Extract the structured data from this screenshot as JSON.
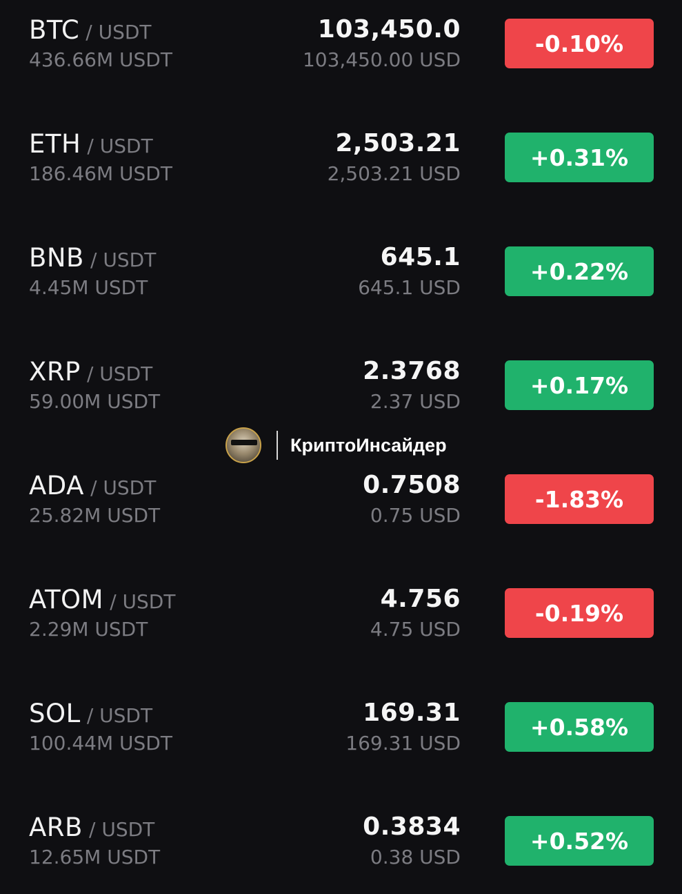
{
  "colors": {
    "background": "#0f0f12",
    "positive": "#20b26c",
    "negative": "#ef454a",
    "muted_text": "#7c7c82"
  },
  "watermark": {
    "text": "КриптоИнсайдер",
    "logo_lettering": "КРИПТОИНСАЙДЕР"
  },
  "pairs": [
    {
      "base": "BTC",
      "quote": "/ USDT",
      "volume": "436.66M USDT",
      "price": "103,450.0",
      "fiat": "103,450.00 USD",
      "change": "-0.10%",
      "direction": "down"
    },
    {
      "base": "ETH",
      "quote": "/ USDT",
      "volume": "186.46M USDT",
      "price": "2,503.21",
      "fiat": "2,503.21 USD",
      "change": "+0.31%",
      "direction": "up"
    },
    {
      "base": "BNB",
      "quote": "/ USDT",
      "volume": "4.45M USDT",
      "price": "645.1",
      "fiat": "645.1 USD",
      "change": "+0.22%",
      "direction": "up"
    },
    {
      "base": "XRP",
      "quote": "/ USDT",
      "volume": "59.00M USDT",
      "price": "2.3768",
      "fiat": "2.37 USD",
      "change": "+0.17%",
      "direction": "up"
    },
    {
      "base": "ADA",
      "quote": "/ USDT",
      "volume": "25.82M USDT",
      "price": "0.7508",
      "fiat": "0.75 USD",
      "change": "-1.83%",
      "direction": "down"
    },
    {
      "base": "ATOM",
      "quote": "/ USDT",
      "volume": "2.29M USDT",
      "price": "4.756",
      "fiat": "4.75 USD",
      "change": "-0.19%",
      "direction": "down"
    },
    {
      "base": "SOL",
      "quote": "/ USDT",
      "volume": "100.44M USDT",
      "price": "169.31",
      "fiat": "169.31 USD",
      "change": "+0.58%",
      "direction": "up"
    },
    {
      "base": "ARB",
      "quote": "/ USDT",
      "volume": "12.65M USDT",
      "price": "0.3834",
      "fiat": "0.38 USD",
      "change": "+0.52%",
      "direction": "up"
    }
  ]
}
